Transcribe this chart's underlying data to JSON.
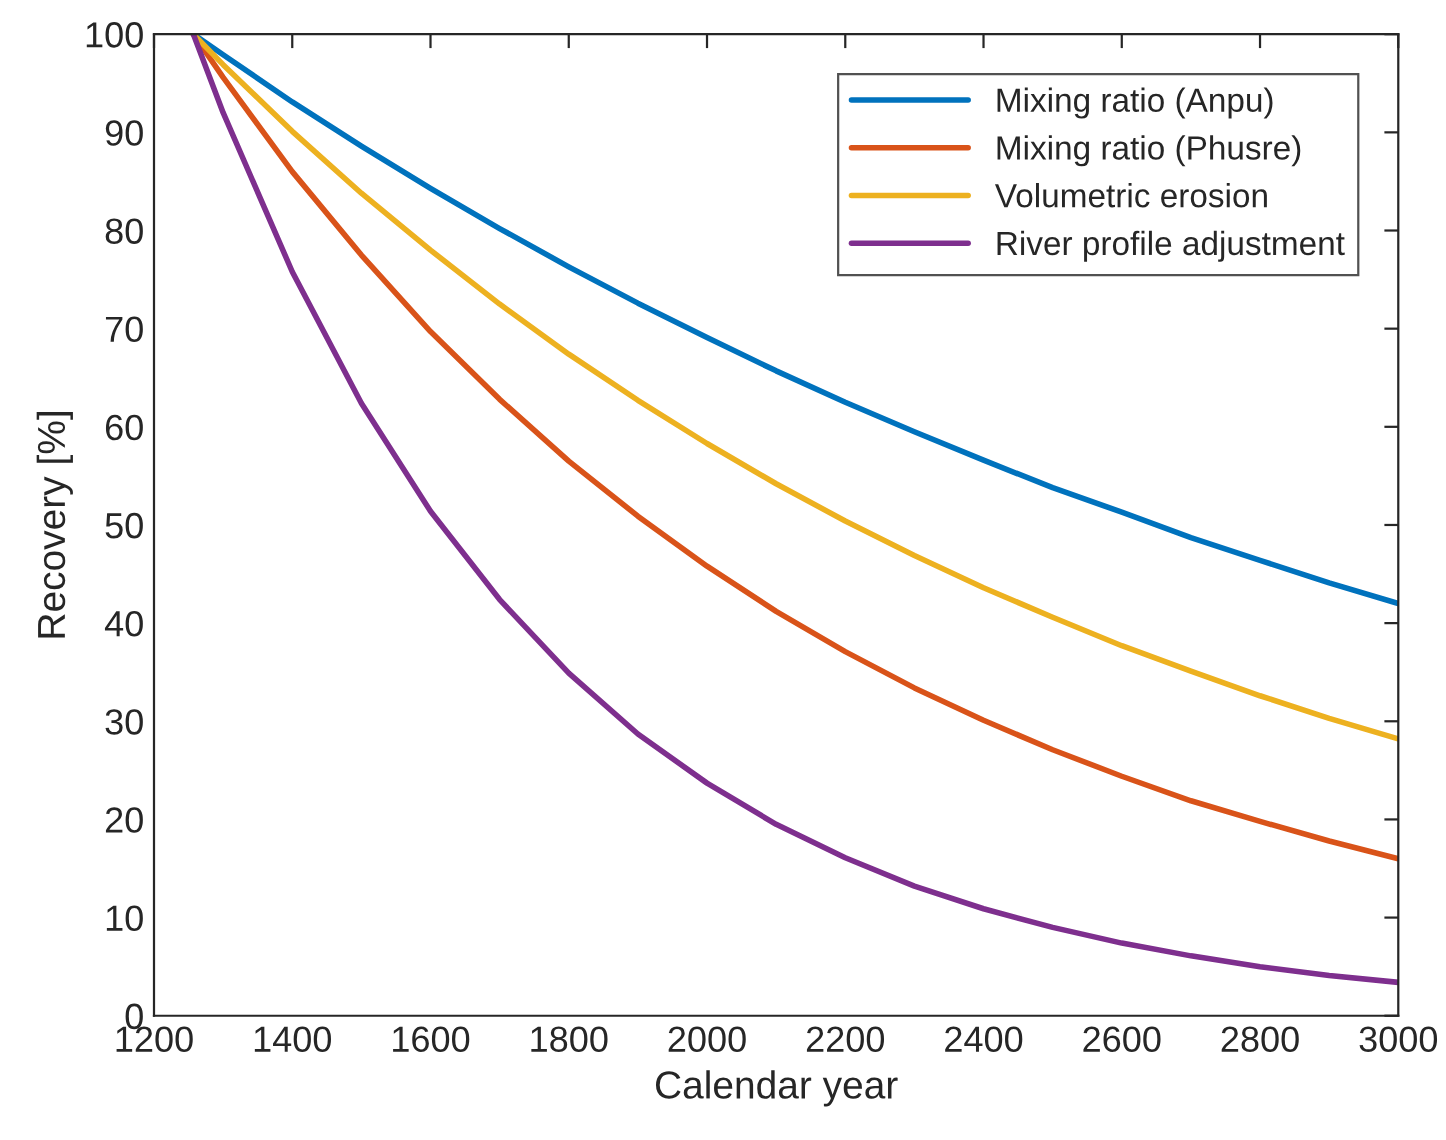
{
  "chart_data": {
    "type": "line",
    "xlabel": "Calendar year",
    "ylabel": "Recovery [%]",
    "x": [
      1257,
      1300,
      1400,
      1500,
      1600,
      1700,
      1800,
      1900,
      2000,
      2100,
      2200,
      2300,
      2400,
      2500,
      2600,
      2700,
      2800,
      2900,
      3000
    ],
    "series": [
      {
        "name": "Mixing ratio (Anpu)",
        "color": "#0072bd",
        "values": [
          100,
          97.9,
          93.1,
          88.6,
          84.3,
          80.2,
          76.3,
          72.6,
          69.1,
          65.7,
          62.5,
          59.5,
          56.6,
          53.8,
          51.3,
          48.7,
          46.4,
          44.1,
          42.0
        ]
      },
      {
        "name": "Mixing ratio (Phusre)",
        "color": "#d95319",
        "values": [
          100,
          95.6,
          86.0,
          77.5,
          69.7,
          62.8,
          56.5,
          50.9,
          45.8,
          41.2,
          37.1,
          33.4,
          30.1,
          27.1,
          24.4,
          21.9,
          19.8,
          17.8,
          16.0
        ]
      },
      {
        "name": "Volumetric erosion",
        "color": "#edb120",
        "values": [
          100,
          96.9,
          90.1,
          83.8,
          78.0,
          72.5,
          67.4,
          62.7,
          58.3,
          54.2,
          50.4,
          46.9,
          43.6,
          40.6,
          37.7,
          35.1,
          32.6,
          30.3,
          28.2
        ]
      },
      {
        "name": "River profile adjustment",
        "color": "#7e2f8e",
        "values": [
          100,
          92.0,
          75.8,
          62.4,
          51.4,
          42.4,
          34.9,
          28.7,
          23.7,
          19.5,
          16.1,
          13.2,
          10.9,
          9.0,
          7.4,
          6.1,
          5.0,
          4.1,
          3.4
        ]
      }
    ],
    "xlim": [
      1200,
      3000
    ],
    "xticks": [
      1200,
      1400,
      1600,
      1800,
      2000,
      2200,
      2400,
      2600,
      2800,
      3000
    ],
    "ylim": [
      0,
      100
    ],
    "yticks": [
      0,
      10,
      20,
      30,
      40,
      50,
      60,
      70,
      80,
      90,
      100
    ],
    "grid": false,
    "legend": "top right",
    "marker": "none",
    "line_style": "solid"
  }
}
